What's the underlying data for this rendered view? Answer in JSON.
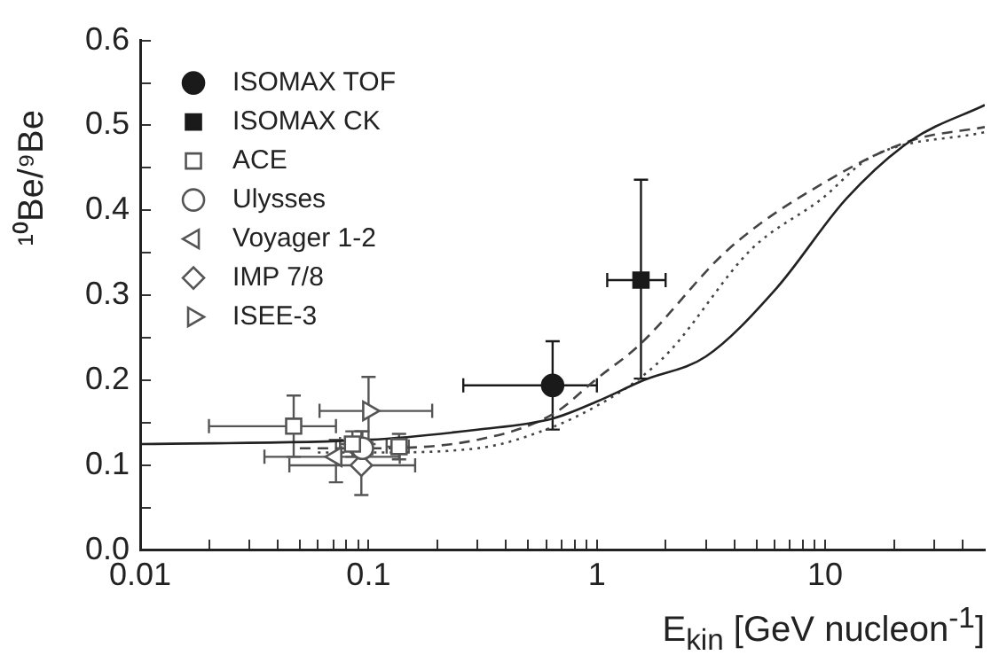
{
  "chart_data": {
    "type": "scatter",
    "xlabel": "E$_{kin}$ [GeV nucleon$^{-1}$]",
    "ylabel": "¹⁰Be/⁹Be",
    "log": "x",
    "grid": false,
    "legend": "top left",
    "xlim": [
      0.01,
      50
    ],
    "xticks": [
      0.01,
      {
        "value": 0.02,
        "label": null
      },
      {
        "value": 0.03,
        "label": null
      },
      {
        "value": 0.04,
        "label": null
      },
      {
        "value": 0.05,
        "label": null
      },
      {
        "value": 0.06,
        "label": null
      },
      {
        "value": 0.07,
        "label": null
      },
      {
        "value": 0.08,
        "label": null
      },
      {
        "value": 0.09,
        "label": null
      },
      0.1,
      {
        "value": 0.2,
        "label": null
      },
      {
        "value": 0.3,
        "label": null
      },
      {
        "value": 0.4,
        "label": null
      },
      {
        "value": 0.5,
        "label": null
      },
      {
        "value": 0.6,
        "label": null
      },
      {
        "value": 0.7,
        "label": null
      },
      {
        "value": 0.8,
        "label": null
      },
      {
        "value": 0.9,
        "label": null
      },
      1,
      {
        "value": 2,
        "label": null
      },
      {
        "value": 3,
        "label": null
      },
      {
        "value": 4,
        "label": null
      },
      {
        "value": 5,
        "label": null
      },
      {
        "value": 6,
        "label": null
      },
      {
        "value": 7,
        "label": null
      },
      {
        "value": 8,
        "label": null
      },
      {
        "value": 9,
        "label": null
      },
      10,
      {
        "value": 20,
        "label": null
      },
      {
        "value": 30,
        "label": null
      },
      {
        "value": 40,
        "label": null
      }
    ],
    "ylim": [
      0,
      0.6
    ],
    "yticks": [
      {
        "value": 0,
        "label": "0.0"
      },
      {
        "value": 0.05,
        "label": null
      },
      0.1,
      {
        "value": 0.15,
        "label": null
      },
      0.2,
      {
        "value": 0.25,
        "label": null
      },
      0.3,
      {
        "value": 0.35,
        "label": null
      },
      0.4,
      {
        "value": 0.45,
        "label": null
      },
      0.5,
      {
        "value": 0.55,
        "label": null
      },
      0.6
    ],
    "series": [
      {
        "name": "ISOMAX TOF",
        "marker": "circle",
        "color": "#1a1a1a",
        "x": [
          0.64
        ],
        "values": [
          0.194
        ],
        "errors": [
          [
            0.142,
            0.246
          ]
        ],
        "xerrors": [
          [
            0.26,
            1.0
          ]
        ]
      },
      {
        "name": "ISOMAX CK",
        "marker": "square",
        "color": "#1a1a1a",
        "x": [
          1.56
        ],
        "values": [
          0.318
        ],
        "errors": [
          [
            0.202,
            0.436
          ]
        ],
        "xerrors": [
          [
            1.11,
            2.0
          ]
        ]
      },
      {
        "name": "ACE",
        "marker": "square-open",
        "color": "#555555",
        "x": [
          0.047,
          0.085,
          0.136
        ],
        "values": [
          0.146,
          0.125,
          0.122
        ],
        "errors": [
          [
            0.11,
            0.182
          ],
          [
            0.11,
            0.14
          ],
          [
            0.107,
            0.137
          ]
        ],
        "xerrors": [
          [
            0.02,
            0.072
          ],
          [
            0.075,
            0.095
          ],
          [
            0.12,
            0.15
          ]
        ]
      },
      {
        "name": "Ulysses",
        "marker": "circle-open",
        "color": "#555555",
        "x": [
          0.094
        ],
        "values": [
          0.12
        ],
        "errors": [
          [
            0.1,
            0.14
          ]
        ],
        "xerrors": [
          [
            0.085,
            0.104
          ]
        ]
      },
      {
        "name": "Voyager 1-2",
        "marker": "triangle-left-open",
        "color": "#555555",
        "x": [
          0.072
        ],
        "values": [
          0.11
        ],
        "errors": [
          [
            0.08,
            0.13
          ]
        ],
        "xerrors": [
          [
            0.035,
            0.137
          ]
        ]
      },
      {
        "name": "IMP 7/8",
        "marker": "diamond-open",
        "color": "#555555",
        "x": [
          0.093
        ],
        "values": [
          0.1
        ],
        "errors": [
          [
            0.065,
            0.14
          ]
        ],
        "xerrors": [
          [
            0.045,
            0.16
          ]
        ]
      },
      {
        "name": "ISEE-3",
        "marker": "triangle-right-open",
        "color": "#555555",
        "x": [
          0.1
        ],
        "values": [
          0.164
        ],
        "errors": [
          [
            0.125,
            0.204
          ]
        ],
        "xerrors": [
          [
            0.061,
            0.19
          ]
        ]
      },
      {
        "type": "line",
        "line_style": "solid",
        "marker": "none",
        "color": "#222222",
        "x": [
          0.01,
          0.1,
          0.3,
          0.64,
          1,
          1.6,
          3,
          6.1,
          12.4,
          23.7,
          50
        ],
        "values": [
          0.125,
          0.13,
          0.142,
          0.155,
          0.175,
          0.2,
          0.228,
          0.308,
          0.414,
          0.482,
          0.524
        ]
      },
      {
        "type": "line",
        "line_style": "dashed",
        "marker": "none",
        "color": "#444444",
        "x": [
          0.05,
          0.1,
          0.3,
          0.64,
          1,
          1.54,
          3.76,
          9.8,
          23.7,
          50
        ],
        "values": [
          0.12,
          0.12,
          0.13,
          0.16,
          0.202,
          0.242,
          0.354,
          0.432,
          0.482,
          0.498
        ]
      },
      {
        "type": "line",
        "line_style": "dotted",
        "marker": "none",
        "color": "#444444",
        "x": [
          0.06,
          0.1,
          0.3,
          0.64,
          1,
          1.5,
          2.08,
          4.74,
          9.7,
          15.7,
          50
        ],
        "values": [
          0.115,
          0.115,
          0.12,
          0.145,
          0.17,
          0.2,
          0.234,
          0.354,
          0.414,
          0.462,
          0.492
        ]
      }
    ]
  }
}
